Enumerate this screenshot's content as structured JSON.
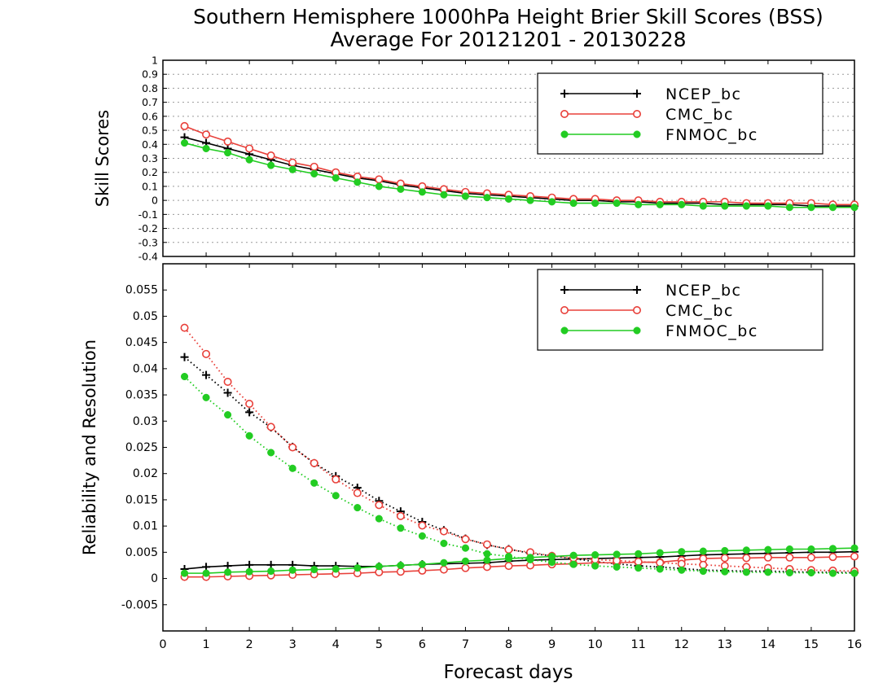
{
  "title": "Southern Hemisphere 1000hPa Height Brier Skill Scores (BSS)",
  "subtitle": "Average For 20121201 - 20130228",
  "xlabel": "Forecast days",
  "colors": {
    "NCEP_bc": "#000000",
    "CMC_bc": "#e8403a",
    "FNMOC_bc": "#22cc22"
  },
  "chart_data": [
    {
      "type": "line",
      "ylabel": "Skill Scores",
      "xlim": [
        0,
        16
      ],
      "ylim": [
        -0.4,
        1
      ],
      "yticks": [
        1,
        0.9,
        0.8,
        0.7,
        0.6,
        0.5,
        0.4,
        0.3,
        0.2,
        0.1,
        0,
        -0.1,
        -0.2,
        -0.3,
        -0.4
      ],
      "ytick_labels": [
        "1",
        "0.9",
        "0.8",
        "0.7",
        "0.6",
        "0.5",
        "0.4",
        "0.3",
        "0.2",
        "0.1",
        "0",
        "-0.1",
        "-0.2",
        "-0.3",
        "-0.4"
      ],
      "grid": true,
      "legend_position": "top-right",
      "x": [
        0.5,
        1,
        1.5,
        2,
        2.5,
        3,
        3.5,
        4,
        4.5,
        5,
        5.5,
        6,
        6.5,
        7,
        7.5,
        8,
        8.5,
        9,
        9.5,
        10,
        10.5,
        11,
        11.5,
        12,
        12.5,
        13,
        13.5,
        14,
        14.5,
        15,
        15.5,
        16
      ],
      "series": [
        {
          "name": "NCEP_bc",
          "marker": "plus",
          "style": "solid",
          "values": [
            0.45,
            0.41,
            0.37,
            0.33,
            0.29,
            0.25,
            0.22,
            0.19,
            0.16,
            0.14,
            0.11,
            0.09,
            0.07,
            0.05,
            0.04,
            0.03,
            0.02,
            0.01,
            0.0,
            0.0,
            -0.01,
            -0.01,
            -0.02,
            -0.02,
            -0.02,
            -0.03,
            -0.03,
            -0.03,
            -0.03,
            -0.04,
            -0.04,
            -0.04
          ]
        },
        {
          "name": "CMC_bc",
          "marker": "open-circle",
          "style": "solid",
          "values": [
            0.53,
            0.47,
            0.42,
            0.37,
            0.32,
            0.27,
            0.24,
            0.2,
            0.17,
            0.15,
            0.12,
            0.1,
            0.08,
            0.06,
            0.05,
            0.04,
            0.03,
            0.02,
            0.01,
            0.01,
            0.0,
            0.0,
            -0.01,
            -0.01,
            -0.01,
            -0.01,
            -0.02,
            -0.02,
            -0.02,
            -0.02,
            -0.03,
            -0.03
          ]
        },
        {
          "name": "FNMOC_bc",
          "marker": "filled-circle",
          "style": "solid",
          "values": [
            0.41,
            0.37,
            0.34,
            0.29,
            0.25,
            0.22,
            0.19,
            0.16,
            0.13,
            0.1,
            0.08,
            0.06,
            0.04,
            0.03,
            0.02,
            0.01,
            0.0,
            -0.01,
            -0.02,
            -0.02,
            -0.02,
            -0.03,
            -0.03,
            -0.03,
            -0.04,
            -0.04,
            -0.04,
            -0.04,
            -0.05,
            -0.05,
            -0.05,
            -0.05
          ]
        }
      ]
    },
    {
      "type": "line",
      "ylabel": "Reliability and Resolution",
      "xlim": [
        0,
        16
      ],
      "ylim": [
        -0.01,
        0.06
      ],
      "yticks": [
        0.055,
        0.05,
        0.045,
        0.04,
        0.035,
        0.03,
        0.025,
        0.02,
        0.015,
        0.01,
        0.005,
        0,
        -0.005
      ],
      "ytick_labels": [
        "0.055",
        "0.05",
        "0.045",
        "0.04",
        "0.035",
        "0.03",
        "0.025",
        "0.02",
        "0.015",
        "0.01",
        "0.005",
        "0",
        "-0.005"
      ],
      "xticks": [
        0,
        1,
        2,
        3,
        4,
        5,
        6,
        7,
        8,
        9,
        10,
        11,
        12,
        13,
        14,
        15,
        16
      ],
      "xtick_labels": [
        "0",
        "1",
        "2",
        "3",
        "4",
        "5",
        "6",
        "7",
        "8",
        "9",
        "10",
        "11",
        "12",
        "13",
        "14",
        "15",
        "16"
      ],
      "grid": false,
      "legend_position": "top-right",
      "x": [
        0.5,
        1,
        1.5,
        2,
        2.5,
        3,
        3.5,
        4,
        4.5,
        5,
        5.5,
        6,
        6.5,
        7,
        7.5,
        8,
        8.5,
        9,
        9.5,
        10,
        10.5,
        11,
        11.5,
        12,
        12.5,
        13,
        13.5,
        14,
        14.5,
        15,
        15.5,
        16
      ],
      "series": [
        {
          "name": "NCEP_bc",
          "component": "reliability",
          "marker": "plus",
          "style": "solid",
          "values": [
            0.0018,
            0.0022,
            0.0024,
            0.0026,
            0.0026,
            0.0026,
            0.0024,
            0.0024,
            0.0023,
            0.0023,
            0.0025,
            0.0027,
            0.0028,
            0.0029,
            0.003,
            0.0033,
            0.0035,
            0.0036,
            0.0037,
            0.0038,
            0.0039,
            0.004,
            0.0041,
            0.0043,
            0.0045,
            0.0046,
            0.0047,
            0.0048,
            0.0049,
            0.005,
            0.005,
            0.0051
          ]
        },
        {
          "name": "NCEP_bc",
          "component": "resolution",
          "marker": "plus",
          "style": "dotted",
          "values": [
            0.0422,
            0.0388,
            0.0354,
            0.0317,
            0.0288,
            0.0251,
            0.022,
            0.0195,
            0.0173,
            0.0148,
            0.0128,
            0.0108,
            0.0092,
            0.0076,
            0.0064,
            0.0056,
            0.0048,
            0.0043,
            0.0038,
            0.0032,
            0.0028,
            0.0024,
            0.0022,
            0.0019,
            0.0016,
            0.0015,
            0.0014,
            0.0014,
            0.0013,
            0.0012,
            0.0012,
            0.0011
          ]
        },
        {
          "name": "CMC_bc",
          "component": "reliability",
          "marker": "open-circle",
          "style": "solid",
          "values": [
            0.0003,
            0.0003,
            0.0004,
            0.0005,
            0.0006,
            0.0007,
            0.0008,
            0.0009,
            0.001,
            0.0012,
            0.0013,
            0.0015,
            0.0017,
            0.002,
            0.0022,
            0.0024,
            0.0025,
            0.0027,
            0.0028,
            0.003,
            0.003,
            0.0031,
            0.0031,
            0.0035,
            0.0038,
            0.0039,
            0.0039,
            0.004,
            0.004,
            0.004,
            0.0041,
            0.0042
          ]
        },
        {
          "name": "CMC_bc",
          "component": "resolution",
          "marker": "open-circle",
          "style": "dotted",
          "values": [
            0.0478,
            0.0428,
            0.0375,
            0.0333,
            0.0289,
            0.025,
            0.022,
            0.0189,
            0.0163,
            0.014,
            0.0119,
            0.0101,
            0.009,
            0.0075,
            0.0065,
            0.0055,
            0.005,
            0.0043,
            0.0039,
            0.0036,
            0.0034,
            0.0032,
            0.003,
            0.0028,
            0.0026,
            0.0024,
            0.0022,
            0.002,
            0.0018,
            0.0016,
            0.0015,
            0.0014
          ]
        },
        {
          "name": "FNMOC_bc",
          "component": "reliability",
          "marker": "filled-circle",
          "style": "solid",
          "values": [
            0.001,
            0.001,
            0.0012,
            0.0013,
            0.0014,
            0.0016,
            0.0017,
            0.0018,
            0.002,
            0.0023,
            0.0025,
            0.0027,
            0.003,
            0.0033,
            0.0035,
            0.0038,
            0.004,
            0.0042,
            0.0044,
            0.0045,
            0.0046,
            0.0047,
            0.0049,
            0.0051,
            0.0052,
            0.0053,
            0.0054,
            0.0055,
            0.0056,
            0.0056,
            0.0057,
            0.0058
          ]
        },
        {
          "name": "FNMOC_bc",
          "component": "resolution",
          "marker": "filled-circle",
          "style": "dotted",
          "values": [
            0.0385,
            0.0345,
            0.0312,
            0.0272,
            0.024,
            0.021,
            0.0182,
            0.0158,
            0.0135,
            0.0114,
            0.0096,
            0.0081,
            0.0067,
            0.0058,
            0.0047,
            0.0042,
            0.0036,
            0.0031,
            0.0027,
            0.0024,
            0.0022,
            0.002,
            0.0018,
            0.0016,
            0.0014,
            0.0013,
            0.0012,
            0.0012,
            0.0011,
            0.0011,
            0.001,
            0.001
          ]
        }
      ]
    }
  ]
}
